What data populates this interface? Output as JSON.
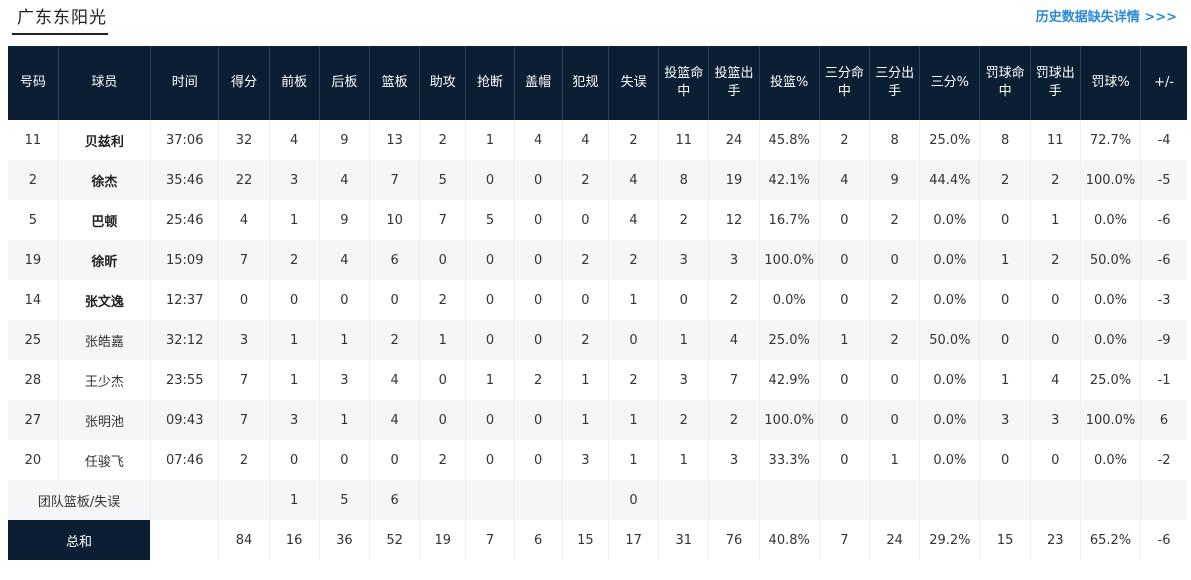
{
  "team": {
    "name": "广东东阳光"
  },
  "header_link": "历史数据缺失详情 >>>",
  "columns": [
    "号码",
    "球员",
    "时间",
    "得分",
    "前板",
    "后板",
    "篮板",
    "助攻",
    "抢断",
    "盖帽",
    "犯规",
    "失误",
    "投篮命中",
    "投篮出手",
    "投篮%",
    "三分命中",
    "三分出手",
    "三分%",
    "罚球命中",
    "罚球出手",
    "罚球%",
    "+/-"
  ],
  "players": [
    {
      "num": "11",
      "name": "贝兹利",
      "starter": true,
      "stats": [
        "37:06",
        "32",
        "4",
        "9",
        "13",
        "2",
        "1",
        "4",
        "4",
        "2",
        "11",
        "24",
        "45.8%",
        "2",
        "8",
        "25.0%",
        "8",
        "11",
        "72.7%",
        "-4"
      ]
    },
    {
      "num": "2",
      "name": "徐杰",
      "starter": true,
      "stats": [
        "35:46",
        "22",
        "3",
        "4",
        "7",
        "5",
        "0",
        "0",
        "2",
        "4",
        "8",
        "19",
        "42.1%",
        "4",
        "9",
        "44.4%",
        "2",
        "2",
        "100.0%",
        "-5"
      ]
    },
    {
      "num": "5",
      "name": "巴顿",
      "starter": true,
      "stats": [
        "25:46",
        "4",
        "1",
        "9",
        "10",
        "7",
        "5",
        "0",
        "0",
        "4",
        "2",
        "12",
        "16.7%",
        "0",
        "2",
        "0.0%",
        "0",
        "1",
        "0.0%",
        "-6"
      ]
    },
    {
      "num": "19",
      "name": "徐昕",
      "starter": true,
      "stats": [
        "15:09",
        "7",
        "2",
        "4",
        "6",
        "0",
        "0",
        "0",
        "2",
        "2",
        "3",
        "3",
        "100.0%",
        "0",
        "0",
        "0.0%",
        "1",
        "2",
        "50.0%",
        "-6"
      ]
    },
    {
      "num": "14",
      "name": "张文逸",
      "starter": true,
      "stats": [
        "12:37",
        "0",
        "0",
        "0",
        "0",
        "2",
        "0",
        "0",
        "0",
        "1",
        "0",
        "2",
        "0.0%",
        "0",
        "2",
        "0.0%",
        "0",
        "0",
        "0.0%",
        "-3"
      ]
    },
    {
      "num": "25",
      "name": "张皓嘉",
      "starter": false,
      "stats": [
        "32:12",
        "3",
        "1",
        "1",
        "2",
        "1",
        "0",
        "0",
        "2",
        "0",
        "1",
        "4",
        "25.0%",
        "1",
        "2",
        "50.0%",
        "0",
        "0",
        "0.0%",
        "-9"
      ]
    },
    {
      "num": "28",
      "name": "王少杰",
      "starter": false,
      "stats": [
        "23:55",
        "7",
        "1",
        "3",
        "4",
        "0",
        "1",
        "2",
        "1",
        "2",
        "3",
        "7",
        "42.9%",
        "0",
        "0",
        "0.0%",
        "1",
        "4",
        "25.0%",
        "-1"
      ]
    },
    {
      "num": "27",
      "name": "张明池",
      "starter": false,
      "stats": [
        "09:43",
        "7",
        "3",
        "1",
        "4",
        "0",
        "0",
        "0",
        "1",
        "1",
        "2",
        "2",
        "100.0%",
        "0",
        "0",
        "0.0%",
        "3",
        "3",
        "100.0%",
        "6"
      ]
    },
    {
      "num": "20",
      "name": "任骏飞",
      "starter": false,
      "stats": [
        "07:46",
        "2",
        "0",
        "0",
        "0",
        "2",
        "0",
        "0",
        "3",
        "1",
        "1",
        "3",
        "33.3%",
        "0",
        "1",
        "0.0%",
        "0",
        "0",
        "0.0%",
        "-2"
      ]
    }
  ],
  "team_row": {
    "label": "团队篮板/失误",
    "stats": [
      "",
      "",
      "1",
      "5",
      "6",
      "",
      "",
      "",
      "",
      "0",
      "",
      "",
      "",
      "",
      "",
      "",
      "",
      "",
      "",
      ""
    ]
  },
  "total_row": {
    "label": "总和",
    "stats": [
      "",
      "84",
      "16",
      "36",
      "52",
      "19",
      "7",
      "6",
      "15",
      "17",
      "31",
      "76",
      "40.8%",
      "7",
      "24",
      "29.2%",
      "15",
      "23",
      "65.2%",
      "-6"
    ]
  }
}
